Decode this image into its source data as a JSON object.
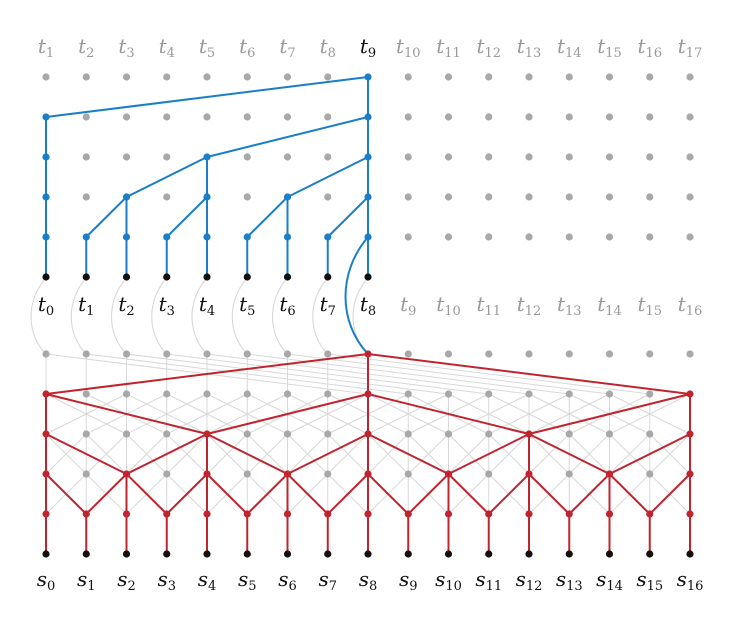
{
  "top_labels": [
    "1",
    "2",
    "3",
    "4",
    "5",
    "6",
    "7",
    "8",
    "9",
    "10",
    "11",
    "12",
    "13",
    "14",
    "15",
    "16",
    "17"
  ],
  "top_highlight_index": 8,
  "mid_labels": [
    "0",
    "1",
    "2",
    "3",
    "4",
    "5",
    "6",
    "7",
    "8",
    "9",
    "10",
    "11",
    "12",
    "13",
    "14",
    "15",
    "16"
  ],
  "mid_active_count": 9,
  "bottom_labels": [
    "0",
    "1",
    "2",
    "3",
    "4",
    "5",
    "6",
    "7",
    "8",
    "9",
    "10",
    "11",
    "12",
    "13",
    "14",
    "15",
    "16"
  ],
  "top_symbol": "t",
  "mid_symbol": "t",
  "bottom_symbol": "s",
  "colors": {
    "grid_dot": "#a8a8a8",
    "inactive_label": "#9a9a9a",
    "active_label": "#111111",
    "leaf_dot": "#111111",
    "blue": "#1a7fc8",
    "red": "#c0242f",
    "light_edge": "#d8d8d8"
  }
}
